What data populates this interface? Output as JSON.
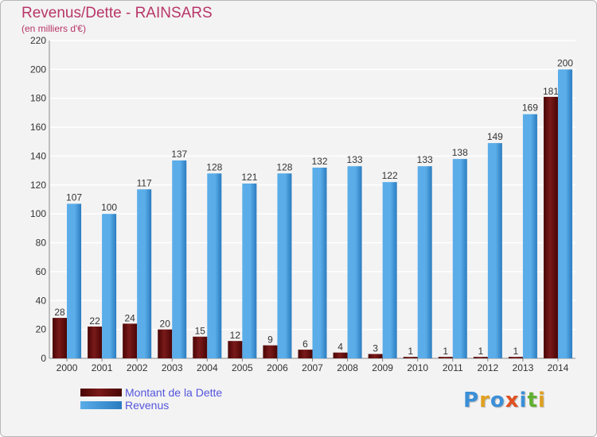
{
  "header": {
    "title": "Revenus/Dette - RAINSARS",
    "subtitle": "(en milliers d'€)"
  },
  "logo": {
    "text": "Proxiti",
    "letters": [
      {
        "ch": "P",
        "color": "#3a8fd8"
      },
      {
        "ch": "r",
        "color": "#e0a020"
      },
      {
        "ch": "o",
        "color": "#3a8fd8"
      },
      {
        "ch": "x",
        "color": "#e05020"
      },
      {
        "ch": "i",
        "color": "#3a8fd8"
      },
      {
        "ch": "t",
        "color": "#60b030"
      },
      {
        "ch": "i",
        "color": "#e0a020"
      }
    ]
  },
  "colors": {
    "debt": "#7a1a1a",
    "debt_dark": "#4a0505",
    "revenue": "#5aade8",
    "revenue_dark": "#2a7cc0",
    "axis_text": "#333333",
    "grid": "#ffffff",
    "title": "#b83668",
    "legend_text": "#5555dd"
  },
  "chart_data": {
    "type": "bar",
    "title": "Revenus/Dette - RAINSARS",
    "subtitle": "(en milliers d'€)",
    "categories": [
      "2000",
      "2001",
      "2002",
      "2003",
      "2004",
      "2005",
      "2006",
      "2007",
      "2008",
      "2009",
      "2010",
      "2011",
      "2012",
      "2013",
      "2014"
    ],
    "series": [
      {
        "name": "Montant de la Dette",
        "values": [
          28,
          22,
          24,
          20,
          15,
          12,
          9,
          6,
          4,
          3,
          1,
          1,
          1,
          1,
          181
        ]
      },
      {
        "name": "Revenus",
        "values": [
          107,
          100,
          117,
          137,
          128,
          121,
          128,
          132,
          133,
          122,
          133,
          138,
          149,
          169,
          200
        ]
      }
    ],
    "ylim": [
      0,
      220
    ],
    "yticks": [
      0,
      20,
      40,
      60,
      80,
      100,
      120,
      140,
      160,
      180,
      200,
      220
    ],
    "grid": true,
    "legend_position": "bottom-left"
  }
}
